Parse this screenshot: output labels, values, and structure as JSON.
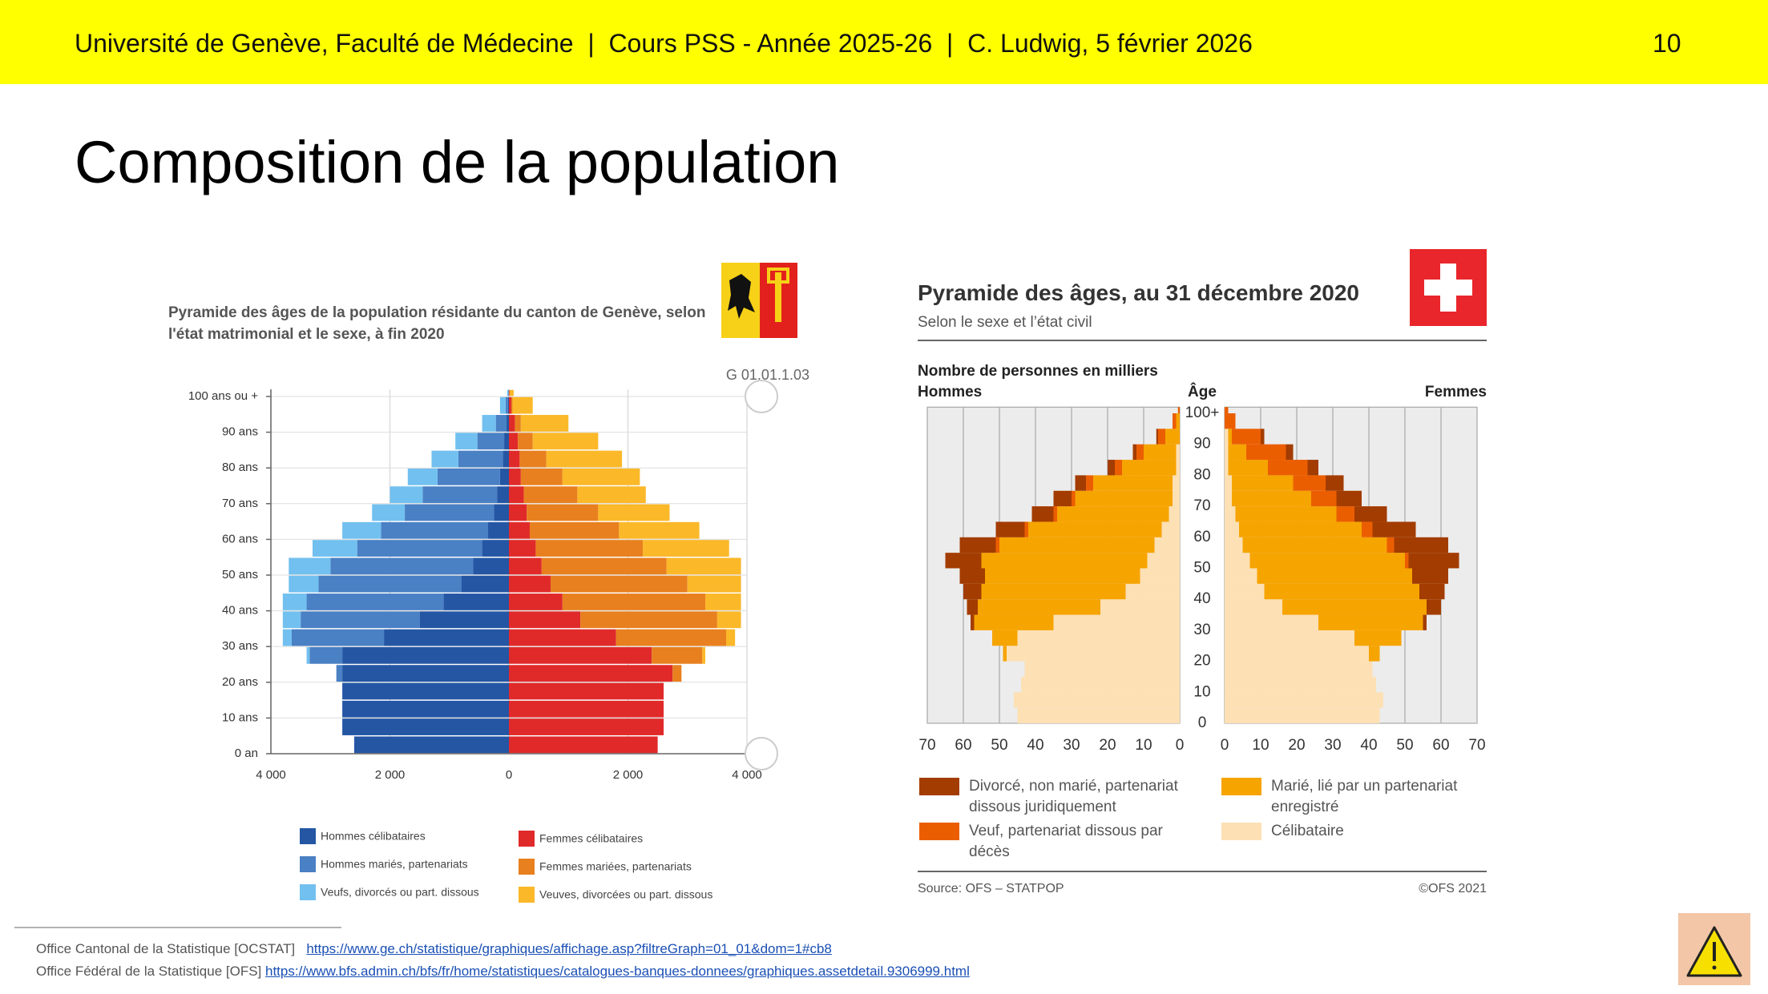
{
  "header": {
    "text": "Université de Genève, Faculté de Médecine  |  Cours PSS - Année 2025-26  |  C. Ludwig, 5 février 2026",
    "page_number": 10
  },
  "slide_title": "Composition de la population",
  "chart_data": [
    {
      "type": "pyramid",
      "title": "Pyramide des âges de la population résidante du canton de Genève, selon l'état matrimonial et le sexe, à fin 2020",
      "code": "G 01.01.1.03",
      "x": [
        0,
        5,
        10,
        15,
        20,
        25,
        30,
        35,
        40,
        45,
        50,
        55,
        60,
        65,
        70,
        75,
        80,
        85,
        90,
        95,
        100
      ],
      "xlim": [
        0,
        102
      ],
      "xticks": [
        {
          "value": 0,
          "label": "0 an"
        },
        {
          "value": 10,
          "label": "10 ans"
        },
        {
          "value": 20,
          "label": "20 ans"
        },
        {
          "value": 30,
          "label": "30 ans"
        },
        {
          "value": 40,
          "label": "40 ans"
        },
        {
          "value": 50,
          "label": "50 ans"
        },
        {
          "value": 60,
          "label": "60 ans"
        },
        {
          "value": 70,
          "label": "70 ans"
        },
        {
          "value": 80,
          "label": "80 ans"
        },
        {
          "value": 90,
          "label": "90 ans"
        },
        {
          "value": 100,
          "label": "100 ans ou +"
        }
      ],
      "ylim": [
        0,
        4000
      ],
      "yticks": [
        0,
        {
          "value": 2000,
          "label": "2 000"
        },
        {
          "value": 4000,
          "label": "4 000"
        }
      ],
      "grid": true,
      "series_left": [
        {
          "name": "Hommes célibataires",
          "color": "#2456a4",
          "values": [
            2600,
            2800,
            2800,
            2800,
            2800,
            2800,
            2100,
            1500,
            1100,
            800,
            600,
            450,
            350,
            250,
            200,
            150,
            100,
            80,
            40,
            15,
            5
          ]
        },
        {
          "name": "Hommes mariés, partenariats",
          "color": "#4a80c4",
          "values": [
            0,
            0,
            0,
            0,
            100,
            550,
            1550,
            2000,
            2300,
            2400,
            2400,
            2100,
            1800,
            1500,
            1250,
            1050,
            750,
            450,
            180,
            40,
            5
          ]
        },
        {
          "name": "Veufs, divorcés ou part. dissous",
          "color": "#72c0ef",
          "values": [
            0,
            0,
            0,
            0,
            0,
            50,
            150,
            300,
            400,
            500,
            700,
            750,
            650,
            550,
            550,
            500,
            450,
            370,
            230,
            95,
            20
          ]
        }
      ],
      "series_right": [
        {
          "name": "Femmes célibataires",
          "color": "#e02a2a",
          "values": [
            2500,
            2600,
            2600,
            2600,
            2750,
            2400,
            1800,
            1200,
            900,
            700,
            550,
            450,
            350,
            300,
            250,
            200,
            180,
            150,
            100,
            40,
            10
          ]
        },
        {
          "name": "Femmes mariées, partenariats",
          "color": "#e8801f",
          "values": [
            0,
            0,
            0,
            0,
            150,
            850,
            1850,
            2300,
            2400,
            2300,
            2100,
            1800,
            1500,
            1200,
            900,
            700,
            450,
            250,
            100,
            20,
            0
          ]
        },
        {
          "name": "Veuves, divorcées ou part. dissous",
          "color": "#fbb829",
          "values": [
            0,
            0,
            0,
            0,
            0,
            50,
            150,
            400,
            600,
            900,
            1250,
            1450,
            1350,
            1200,
            1150,
            1300,
            1270,
            1100,
            800,
            340,
            70
          ]
        }
      ]
    },
    {
      "type": "pyramid",
      "title": "Pyramide des âges, au 31 décembre 2020",
      "subtitle": "Selon le sexe et l’état civil",
      "value_label": "Nombre de personnes en milliers",
      "age_label": "Âge",
      "label_left": "Hommes",
      "label_right": "Femmes",
      "source": "Source: OFS – STATPOP",
      "copyright": "©OFS 2021",
      "x": [
        0,
        5,
        10,
        15,
        20,
        25,
        30,
        35,
        40,
        45,
        50,
        55,
        60,
        65,
        70,
        75,
        80,
        85,
        90,
        95,
        100
      ],
      "xlim": [
        0,
        102
      ],
      "xticks": [
        0,
        10,
        20,
        30,
        40,
        50,
        60,
        70,
        80,
        90,
        {
          "value": 100,
          "label": "100+"
        }
      ],
      "ylim": [
        0,
        70
      ],
      "yticks": [
        0,
        10,
        20,
        30,
        40,
        50,
        60,
        70
      ],
      "grid": true,
      "series": [
        {
          "name": "Célibataire",
          "color": "#fde0b4",
          "values_left": [
            45,
            46,
            44,
            43,
            48,
            45,
            35,
            22,
            15,
            11,
            9,
            7,
            5,
            3,
            2,
            2,
            1,
            1,
            0,
            0,
            0
          ],
          "values_right": [
            43,
            44,
            42,
            41,
            40,
            36,
            26,
            16,
            11,
            9,
            7,
            5,
            4,
            3,
            2,
            2,
            1,
            1,
            1,
            0,
            0
          ]
        },
        {
          "name": "Marié, lié par un partenariat enregistré",
          "color": "#f6a400",
          "values_left": [
            0,
            0,
            0,
            0,
            1,
            7,
            22,
            34,
            40,
            43,
            46,
            43,
            37,
            31,
            27,
            22,
            15,
            9,
            4,
            1,
            0
          ],
          "values_right": [
            0,
            0,
            0,
            0,
            3,
            13,
            29,
            40,
            43,
            43,
            43,
            40,
            34,
            28,
            22,
            17,
            11,
            5,
            1,
            0,
            0
          ]
        },
        {
          "name": "Veuf, partenariat dissous par décès",
          "color": "#eb5e00",
          "values_left": [
            0,
            0,
            0,
            0,
            0,
            0,
            0,
            0,
            0,
            0,
            0,
            1,
            1,
            1,
            1,
            2,
            2,
            2,
            2,
            1,
            0.5
          ],
          "values_right": [
            0,
            0,
            0,
            0,
            0,
            0,
            0,
            0,
            0,
            0,
            1,
            2,
            3,
            5,
            7,
            9,
            11,
            11,
            8,
            3,
            1
          ]
        },
        {
          "name": "Divorcé, non marié, partenariat dissous juridiquement",
          "color": "#a33c00",
          "values_left": [
            0,
            0,
            0,
            0,
            0,
            0,
            1,
            3,
            5,
            7,
            10,
            10,
            8,
            6,
            5,
            3,
            2,
            1,
            0.5,
            0,
            0
          ],
          "values_right": [
            0,
            0,
            0,
            0,
            0,
            0,
            1,
            4,
            7,
            10,
            14,
            15,
            12,
            9,
            7,
            5,
            3,
            2,
            1,
            0,
            0
          ]
        }
      ]
    }
  ],
  "footer": [
    {
      "source": "Office Cantonal de la Statistique [OCSTAT]",
      "link": "https://www.ge.ch/statistique/graphiques/affichage.asp?filtreGraph=01_01&dom=1#cb8"
    },
    {
      "source": "Office Fédéral de la Statistique [OFS]",
      "link": "https://www.bfs.admin.ch/bfs/fr/home/statistiques/catalogues-banques-donnees/graphiques.assetdetail.9306999.html"
    }
  ]
}
